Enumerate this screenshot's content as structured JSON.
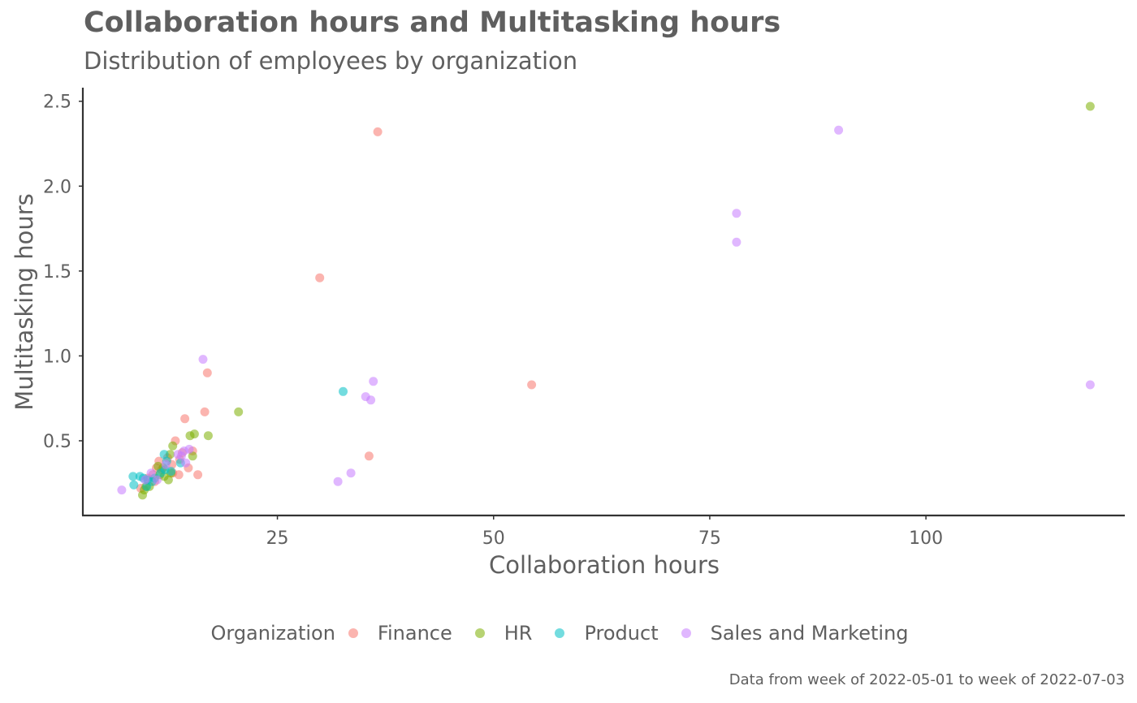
{
  "chart_data": {
    "type": "scatter",
    "title": "Collaboration hours and Multitasking hours",
    "subtitle": "Distribution of employees by organization",
    "xlabel": "Collaboration hours",
    "ylabel": "Multitasking hours",
    "caption": "Data from week of 2022-05-01 to week of 2022-07-03",
    "xlim": [
      2.5,
      123
    ],
    "ylim": [
      0.06,
      2.58
    ],
    "x_ticks": [
      25,
      50,
      75,
      100
    ],
    "y_ticks": [
      0.5,
      1.0,
      1.5,
      2.0,
      2.5
    ],
    "x_tick_labels": [
      "25",
      "50",
      "75",
      "100"
    ],
    "y_tick_labels": [
      "0.5",
      "1.0",
      "1.5",
      "2.0",
      "2.5"
    ],
    "grid": false,
    "legend": {
      "title": "Organization",
      "position": "bottom"
    },
    "point_opacity": 0.55,
    "series": [
      {
        "name": "Finance",
        "color": "#F8766D",
        "points": [
          [
            36.6,
            2.32
          ],
          [
            29.9,
            1.46
          ],
          [
            54.4,
            0.83
          ],
          [
            16.9,
            0.9
          ],
          [
            16.6,
            0.67
          ],
          [
            14.3,
            0.63
          ],
          [
            35.6,
            0.41
          ],
          [
            15.8,
            0.3
          ],
          [
            14.7,
            0.34
          ],
          [
            13.6,
            0.3
          ],
          [
            13.2,
            0.5
          ],
          [
            15.2,
            0.44
          ],
          [
            11.3,
            0.38
          ],
          [
            12.8,
            0.36
          ],
          [
            11.0,
            0.34
          ],
          [
            10.6,
            0.3
          ],
          [
            10.0,
            0.28
          ],
          [
            9.2,
            0.22
          ],
          [
            12.3,
            0.4
          ],
          [
            12.9,
            0.31
          ],
          [
            11.6,
            0.33
          ],
          [
            14.0,
            0.43
          ],
          [
            13.7,
            0.39
          ],
          [
            10.8,
            0.26
          ]
        ]
      },
      {
        "name": "HR",
        "color": "#7CAE00",
        "points": [
          [
            119.0,
            2.47
          ],
          [
            20.5,
            0.67
          ],
          [
            17.0,
            0.53
          ],
          [
            14.9,
            0.53
          ],
          [
            15.4,
            0.54
          ],
          [
            15.2,
            0.41
          ],
          [
            12.9,
            0.47
          ],
          [
            11.8,
            0.34
          ],
          [
            12.4,
            0.27
          ],
          [
            9.4,
            0.18
          ],
          [
            9.8,
            0.23
          ],
          [
            10.2,
            0.23
          ],
          [
            11.9,
            0.29
          ],
          [
            12.7,
            0.31
          ],
          [
            11.2,
            0.35
          ],
          [
            12.6,
            0.42
          ],
          [
            9.6,
            0.21
          ],
          [
            11.4,
            0.3
          ]
        ]
      },
      {
        "name": "Product",
        "color": "#00BFC4",
        "points": [
          [
            32.6,
            0.79
          ],
          [
            8.3,
            0.29
          ],
          [
            9.1,
            0.29
          ],
          [
            9.5,
            0.28
          ],
          [
            10.0,
            0.27
          ],
          [
            10.8,
            0.28
          ],
          [
            11.9,
            0.42
          ],
          [
            12.2,
            0.38
          ],
          [
            12.7,
            0.32
          ],
          [
            11.5,
            0.31
          ],
          [
            9.9,
            0.23
          ],
          [
            8.4,
            0.24
          ],
          [
            13.8,
            0.37
          ],
          [
            12.0,
            0.33
          ],
          [
            10.5,
            0.26
          ]
        ]
      },
      {
        "name": "Sales and Marketing",
        "color": "#C77CFF",
        "points": [
          [
            89.9,
            2.33
          ],
          [
            78.1,
            1.84
          ],
          [
            78.1,
            1.67
          ],
          [
            16.4,
            0.98
          ],
          [
            36.1,
            0.85
          ],
          [
            119.0,
            0.83
          ],
          [
            35.2,
            0.76
          ],
          [
            35.8,
            0.74
          ],
          [
            33.5,
            0.31
          ],
          [
            32.0,
            0.26
          ],
          [
            7.0,
            0.21
          ],
          [
            14.8,
            0.45
          ],
          [
            14.2,
            0.44
          ],
          [
            13.9,
            0.41
          ],
          [
            14.4,
            0.37
          ],
          [
            13.5,
            0.42
          ],
          [
            10.4,
            0.31
          ],
          [
            11.1,
            0.27
          ],
          [
            12.1,
            0.36
          ],
          [
            9.7,
            0.27
          ]
        ]
      }
    ]
  }
}
